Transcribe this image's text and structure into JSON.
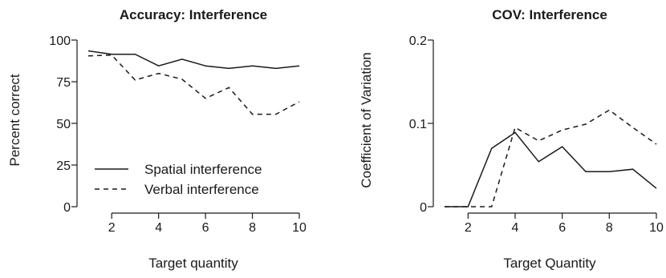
{
  "chart_data": [
    {
      "type": "line",
      "title": "Accuracy: Interference",
      "xlabel": "Target quantity",
      "ylabel": "Percent correct",
      "xlim": [
        1,
        10
      ],
      "ylim": [
        0,
        100
      ],
      "xticks": [
        2,
        4,
        6,
        8,
        10
      ],
      "yticks": [
        0,
        25,
        50,
        75,
        100
      ],
      "x": [
        1,
        2,
        3,
        4,
        5,
        6,
        7,
        8,
        9,
        10
      ],
      "series": [
        {
          "name": "Spatial interference",
          "style": "solid",
          "values": [
            93.5,
            91.5,
            91.5,
            84.5,
            88.5,
            84.5,
            83,
            84.5,
            83,
            84.5
          ]
        },
        {
          "name": "Verbal interference",
          "style": "dashed",
          "values": [
            90.5,
            91,
            76,
            80,
            76.5,
            65,
            71.5,
            55.5,
            55.5,
            63
          ]
        }
      ],
      "legend_position": "bottom-left",
      "grid": false
    },
    {
      "type": "line",
      "title": "COV: Interference",
      "xlabel": "Target Quantity",
      "ylabel": "Coefficient of Variation",
      "xlim": [
        1,
        10
      ],
      "ylim": [
        0,
        0.2
      ],
      "xticks": [
        2,
        4,
        6,
        8,
        10
      ],
      "yticks": [
        0,
        0.1,
        0.2
      ],
      "ytick_labels": [
        "0",
        "0.1",
        "0.2"
      ],
      "x": [
        1,
        2,
        3,
        4,
        5,
        6,
        7,
        8,
        9,
        10
      ],
      "series": [
        {
          "style": "solid",
          "values": [
            0,
            0,
            0.07,
            0.089,
            0.054,
            0.072,
            0.042,
            0.042,
            0.045,
            0.022
          ]
        },
        {
          "style": "dashed",
          "values": [
            0,
            0,
            0,
            0.095,
            0.079,
            0.092,
            0.099,
            0.116,
            0.095,
            0.075
          ]
        }
      ],
      "grid": false
    }
  ]
}
